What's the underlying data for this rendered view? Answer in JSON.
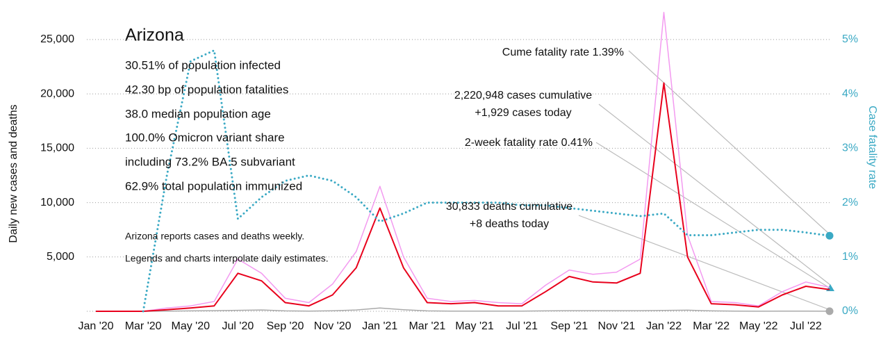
{
  "chart_data": {
    "type": "line",
    "ylabel": "Daily new cases and deaths",
    "y2label": "Case fatality rate",
    "x": [
      "2020-01",
      "2020-02",
      "2020-03",
      "2020-04",
      "2020-05",
      "2020-06",
      "2020-07",
      "2020-08",
      "2020-09",
      "2020-10",
      "2020-11",
      "2020-12",
      "2021-01",
      "2021-02",
      "2021-03",
      "2021-04",
      "2021-05",
      "2021-06",
      "2021-07",
      "2021-08",
      "2021-09",
      "2021-10",
      "2021-11",
      "2021-12",
      "2022-01",
      "2022-02",
      "2022-03",
      "2022-04",
      "2022-05",
      "2022-06",
      "2022-07",
      "2022-08"
    ],
    "xticks": [
      {
        "value": "2020-01",
        "label": "Jan '20"
      },
      {
        "value": "2020-03",
        "label": "Mar '20"
      },
      {
        "value": "2020-05",
        "label": "May '20"
      },
      {
        "value": "2020-07",
        "label": "Jul '20"
      },
      {
        "value": "2020-09",
        "label": "Sep '20"
      },
      {
        "value": "2020-11",
        "label": "Nov '20"
      },
      {
        "value": "2021-01",
        "label": "Jan '21"
      },
      {
        "value": "2021-03",
        "label": "Mar '21"
      },
      {
        "value": "2021-05",
        "label": "May '21"
      },
      {
        "value": "2021-07",
        "label": "Jul '21"
      },
      {
        "value": "2021-09",
        "label": "Sep '21"
      },
      {
        "value": "2021-11",
        "label": "Nov '21"
      },
      {
        "value": "2022-01",
        "label": "Jan '22"
      },
      {
        "value": "2022-03",
        "label": "Mar '22"
      },
      {
        "value": "2022-05",
        "label": "May '22"
      },
      {
        "value": "2022-07",
        "label": "Jul '22"
      }
    ],
    "ylim": [
      0,
      28000
    ],
    "yticks": [
      {
        "value": 5000,
        "label": "5,000"
      },
      {
        "value": 10000,
        "label": "10,000"
      },
      {
        "value": 15000,
        "label": "15,000"
      },
      {
        "value": 20000,
        "label": "20,000"
      },
      {
        "value": 25000,
        "label": "25,000"
      }
    ],
    "y2lim": [
      0,
      5.6
    ],
    "y2ticks": [
      {
        "value": 0,
        "label": "0%"
      },
      {
        "value": 1,
        "label": "1%"
      },
      {
        "value": 2,
        "label": "2%"
      },
      {
        "value": 3,
        "label": "3%"
      },
      {
        "value": 4,
        "label": "4%"
      },
      {
        "value": 5,
        "label": "5%"
      }
    ],
    "grid": true,
    "series": [
      {
        "color": "#f39af0",
        "width": 1.5,
        "values": [
          0,
          0,
          0,
          300,
          500,
          900,
          4800,
          3500,
          1200,
          800,
          2500,
          5500,
          11500,
          5000,
          1200,
          900,
          1000,
          800,
          700,
          2400,
          3800,
          3400,
          3600,
          4800,
          27500,
          7000,
          900,
          800,
          500,
          1800,
          2700,
          2200
        ]
      },
      {
        "color": "#aaaaaa",
        "width": 1.5,
        "end_marker": true,
        "values": [
          0,
          0,
          0,
          20,
          40,
          60,
          90,
          120,
          40,
          20,
          50,
          120,
          300,
          150,
          40,
          20,
          20,
          15,
          15,
          40,
          60,
          60,
          60,
          60,
          80,
          100,
          40,
          10,
          8,
          10,
          15,
          8
        ]
      },
      {
        "color": "#e8001c",
        "width": 2,
        "values": [
          0,
          0,
          0,
          150,
          300,
          500,
          3500,
          2800,
          800,
          500,
          1500,
          4000,
          9500,
          4000,
          800,
          700,
          800,
          500,
          500,
          1800,
          3200,
          2700,
          2600,
          3500,
          21000,
          5000,
          700,
          600,
          400,
          1500,
          2300,
          2000
        ]
      },
      {
        "color": "#3aa9c4",
        "width": 3,
        "dash": "dotted",
        "axis": "y2",
        "end_marker": true,
        "values": [
          null,
          null,
          0,
          2.5,
          4.6,
          4.8,
          1.7,
          2.1,
          2.4,
          2.5,
          2.4,
          2.1,
          1.65,
          1.8,
          2.0,
          2.0,
          2.0,
          2.0,
          1.95,
          1.95,
          1.9,
          1.85,
          1.8,
          1.75,
          1.8,
          1.4,
          1.4,
          1.45,
          1.5,
          1.5,
          1.45,
          1.39
        ]
      }
    ],
    "title": "Arizona",
    "stats": [
      "30.51% of population infected",
      "42.30 bp of population fatalities",
      "38.0 median population age",
      "100.0% Omicron variant share",
      "including 73.2% BA.5 subvariant",
      "62.9% total population immunized"
    ],
    "notes": [
      "Arizona reports cases and deaths weekly.",
      "Legends and charts interpolate daily estimates."
    ],
    "annotations": [
      "Cume fatality rate 1.39%",
      "2,220,948 cases cumulative",
      "+1,929 cases today",
      "2-week fatality rate 0.41%",
      "30,833 deaths cumulative",
      "+8 deaths today"
    ]
  }
}
